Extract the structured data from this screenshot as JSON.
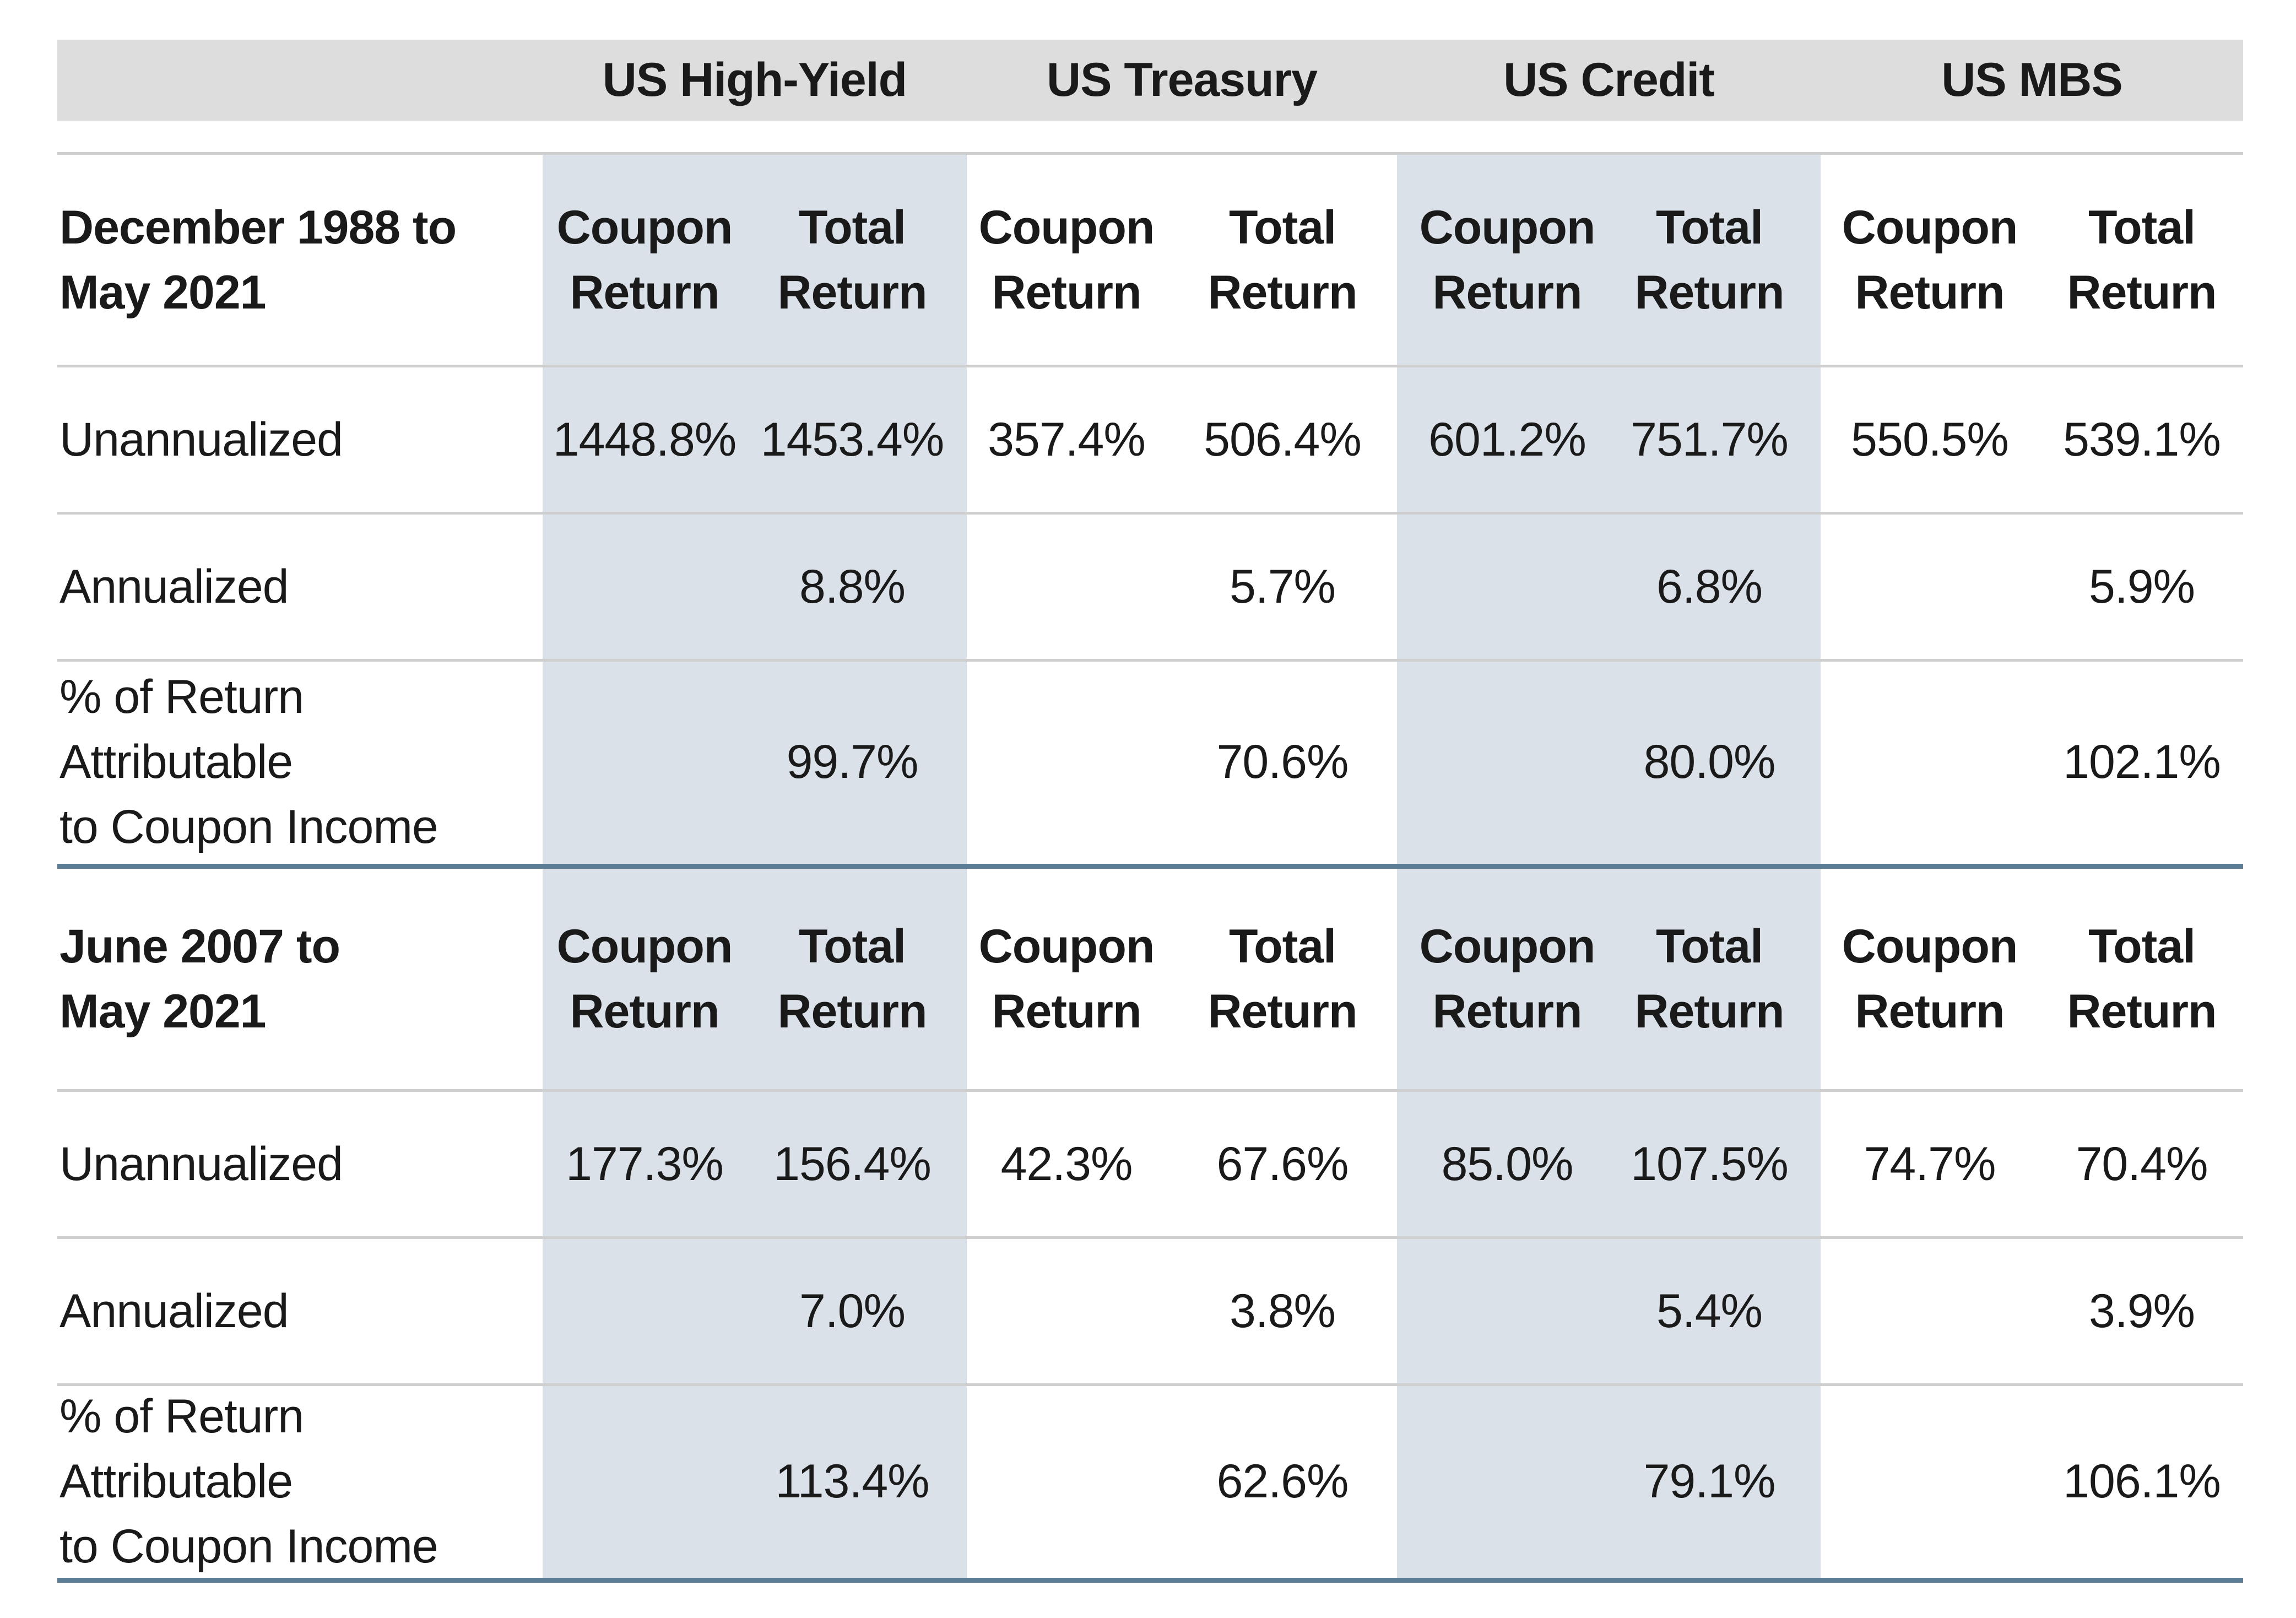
{
  "sectors": [
    "US High-Yield",
    "US Treasury",
    "US Credit",
    "US MBS"
  ],
  "sections": [
    {
      "period_label": "December 1988 to\nMay 2021",
      "column_headers": [
        "Coupon\nReturn",
        "Total\nReturn",
        "Coupon\nReturn",
        "Total\nReturn",
        "Coupon\nReturn",
        "Total\nReturn",
        "Coupon\nReturn",
        "Total\nReturn"
      ],
      "rows": [
        {
          "label": "Unannualized",
          "values": [
            "1448.8%",
            "1453.4%",
            "357.4%",
            "506.4%",
            "601.2%",
            "751.7%",
            "550.5%",
            "539.1%"
          ]
        },
        {
          "label": "Annualized",
          "values": [
            "",
            "8.8%",
            "",
            "5.7%",
            "",
            "6.8%",
            "",
            "5.9%"
          ]
        },
        {
          "label": "% of Return Attributable\nto Coupon Income",
          "values": [
            "",
            "99.7%",
            "",
            "70.6%",
            "",
            "80.0%",
            "",
            "102.1%"
          ]
        }
      ]
    },
    {
      "period_label": "June 2007 to\nMay 2021",
      "column_headers": [
        "Coupon\nReturn",
        "Total\nReturn",
        "Coupon\nReturn",
        "Total\nReturn",
        "Coupon\nReturn",
        "Total\nReturn",
        "Coupon\nReturn",
        "Total\nReturn"
      ],
      "rows": [
        {
          "label": "Unannualized",
          "values": [
            "177.3%",
            "156.4%",
            "42.3%",
            "67.6%",
            "85.0%",
            "107.5%",
            "74.7%",
            "70.4%"
          ]
        },
        {
          "label": "Annualized",
          "values": [
            "",
            "7.0%",
            "",
            "3.8%",
            "",
            "5.4%",
            "",
            "3.9%"
          ]
        },
        {
          "label": "% of Return Attributable\nto Coupon Income",
          "values": [
            "",
            "113.4%",
            "",
            "62.6%",
            "",
            "79.1%",
            "",
            "106.1%"
          ]
        }
      ]
    }
  ],
  "colors": {
    "header_band": "#dddddd",
    "column_shade": "#dae1e8",
    "rule_light": "#cfcfcf",
    "rule_dark": "#5c7d96"
  }
}
